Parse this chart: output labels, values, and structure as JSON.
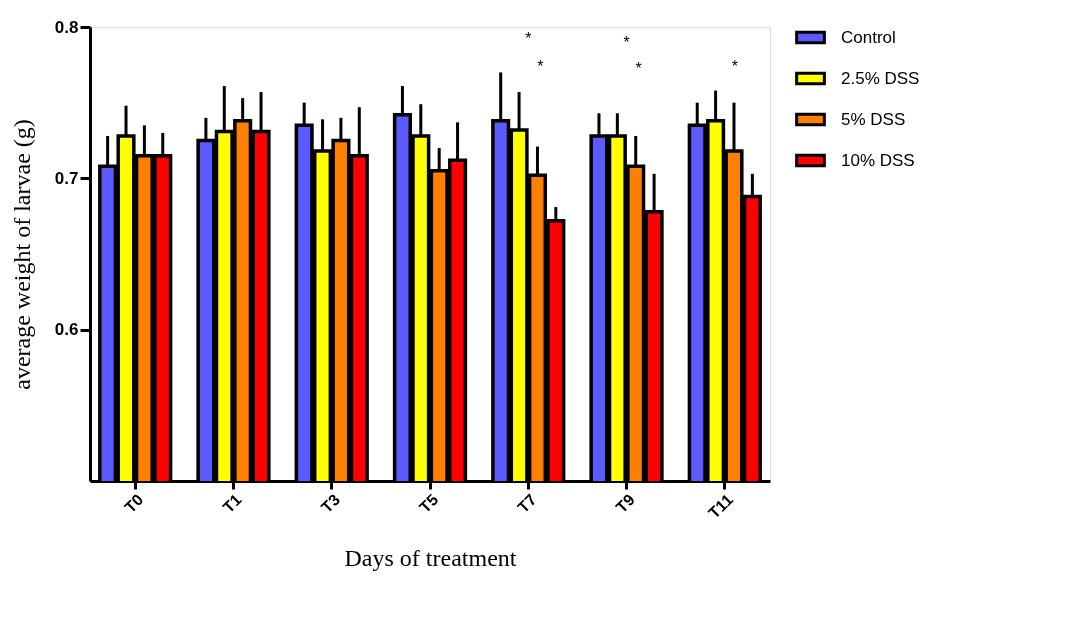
{
  "chart_data": {
    "type": "bar",
    "xlabel": "Days of treatment",
    "ylabel": "average weight of larvae (g)",
    "categories": [
      "T0",
      "T1",
      "T3",
      "T5",
      "T7",
      "T9",
      "T11"
    ],
    "series": [
      {
        "name": "Control",
        "color": "#5a5aff",
        "values": [
          0.708,
          0.725,
          0.735,
          0.742,
          0.738,
          0.728,
          0.735
        ],
        "errors": [
          [
            0.708,
            0.728
          ],
          [
            0.725,
            0.74
          ],
          [
            0.735,
            0.75
          ],
          [
            0.742,
            0.761
          ],
          [
            0.738,
            0.77
          ],
          [
            0.728,
            0.743
          ],
          [
            0.735,
            0.75
          ]
        ]
      },
      {
        "name": "2.5% DSS",
        "color": "#ffff00",
        "values": [
          0.728,
          0.731,
          0.718,
          0.728,
          0.732,
          0.728,
          0.738
        ],
        "errors": [
          [
            0.728,
            0.748
          ],
          [
            0.731,
            0.761
          ],
          [
            0.718,
            0.739
          ],
          [
            0.728,
            0.749
          ],
          [
            0.732,
            0.757
          ],
          [
            0.728,
            0.743
          ],
          [
            0.738,
            0.758
          ]
        ]
      },
      {
        "name": "5% DSS",
        "color": "#ff8000",
        "values": [
          0.715,
          0.738,
          0.725,
          0.705,
          0.702,
          0.708,
          0.718
        ],
        "errors": [
          [
            0.715,
            0.735
          ],
          [
            0.738,
            0.753
          ],
          [
            0.725,
            0.74
          ],
          [
            0.705,
            0.72
          ],
          [
            0.702,
            0.721
          ],
          [
            0.708,
            0.728
          ],
          [
            0.718,
            0.75
          ]
        ]
      },
      {
        "name": "10% DSS",
        "color": "#ff0000",
        "values": [
          0.715,
          0.731,
          0.715,
          0.712,
          0.672,
          0.678,
          0.688
        ],
        "errors": [
          [
            0.715,
            0.73
          ],
          [
            0.731,
            0.757
          ],
          [
            0.715,
            0.747
          ],
          [
            0.712,
            0.737
          ],
          [
            0.672,
            0.681
          ],
          [
            0.678,
            0.703
          ],
          [
            0.688,
            0.703
          ]
        ]
      }
    ],
    "ylim": [
      0.5,
      0.8
    ],
    "yticks": [
      0.6,
      0.7,
      0.8
    ],
    "grid": false,
    "legend": "top right",
    "annotations": [
      "*",
      "*",
      "*",
      "*",
      "*"
    ]
  }
}
